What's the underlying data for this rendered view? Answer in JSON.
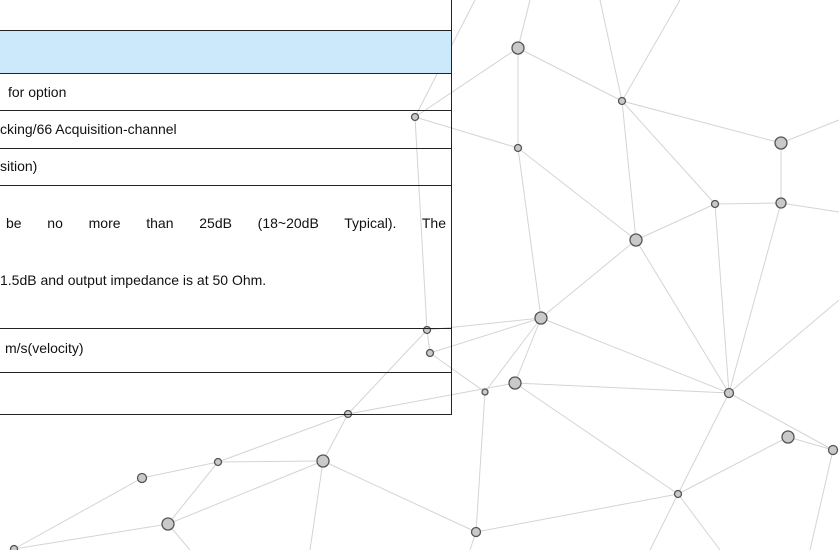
{
  "table": {
    "rows": [
      {
        "text": "for option"
      },
      {
        "text": "cking/66 Acquisition-channel"
      },
      {
        "text": "sition)"
      },
      {
        "lines": [
          "be no more than 25dB (18~20dB Typical). The",
          "1.5dB and output impedance is at 50 Ohm."
        ]
      },
      {
        "text": "m/s(velocity)"
      }
    ]
  }
}
